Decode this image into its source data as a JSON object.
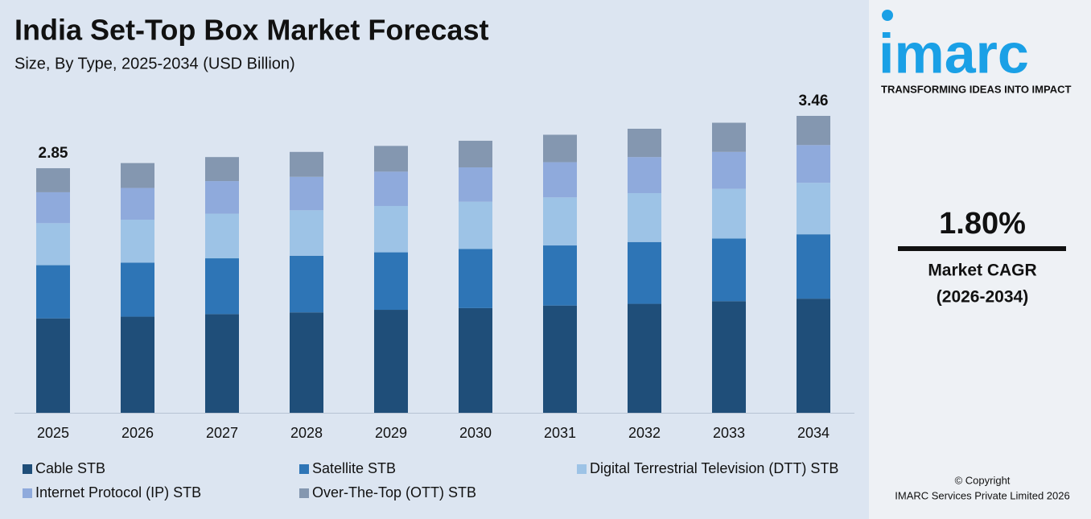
{
  "chart_data": {
    "type": "stacked_bar",
    "title": "India Set-Top Box Market Forecast",
    "subtitle": "Size, By Type, 2025-2034 (USD Billion)",
    "categories": [
      "2025",
      "2026",
      "2027",
      "2028",
      "2029",
      "2030",
      "2031",
      "2032",
      "2033",
      "2034"
    ],
    "series": [
      {
        "name": "Cable STB",
        "color": "#1f4e79",
        "values": [
          1.1,
          1.12,
          1.15,
          1.17,
          1.2,
          1.22,
          1.25,
          1.27,
          1.3,
          1.33
        ]
      },
      {
        "name": "Satellite STB",
        "color": "#2e75b6",
        "values": [
          0.62,
          0.63,
          0.65,
          0.66,
          0.67,
          0.69,
          0.7,
          0.72,
          0.73,
          0.75
        ]
      },
      {
        "name": "Digital Terrestrial Television (DTT) STB",
        "color": "#9dc3e6",
        "values": [
          0.49,
          0.5,
          0.52,
          0.53,
          0.54,
          0.55,
          0.56,
          0.57,
          0.58,
          0.6
        ]
      },
      {
        "name": "Internet Protocol (IP) STB",
        "color": "#8faadc",
        "values": [
          0.36,
          0.37,
          0.38,
          0.39,
          0.4,
          0.4,
          0.41,
          0.42,
          0.43,
          0.44
        ]
      },
      {
        "name": "Over-The-Top (OTT) STB",
        "color": "#8497b0",
        "values": [
          0.28,
          0.29,
          0.28,
          0.29,
          0.3,
          0.31,
          0.32,
          0.33,
          0.34,
          0.34
        ]
      }
    ],
    "totals": [
      2.85,
      null,
      null,
      null,
      null,
      null,
      null,
      null,
      null,
      3.46
    ]
  },
  "brand": {
    "logo": "imarc",
    "tagline": "TRANSFORMING IDEAS INTO IMPACT"
  },
  "cagr": {
    "value": "1.80%",
    "label": "Market CAGR",
    "period": "(2026-2034)"
  },
  "footer": {
    "copyright": "© Copyright",
    "company": "IMARC Services Private Limited 2026"
  }
}
